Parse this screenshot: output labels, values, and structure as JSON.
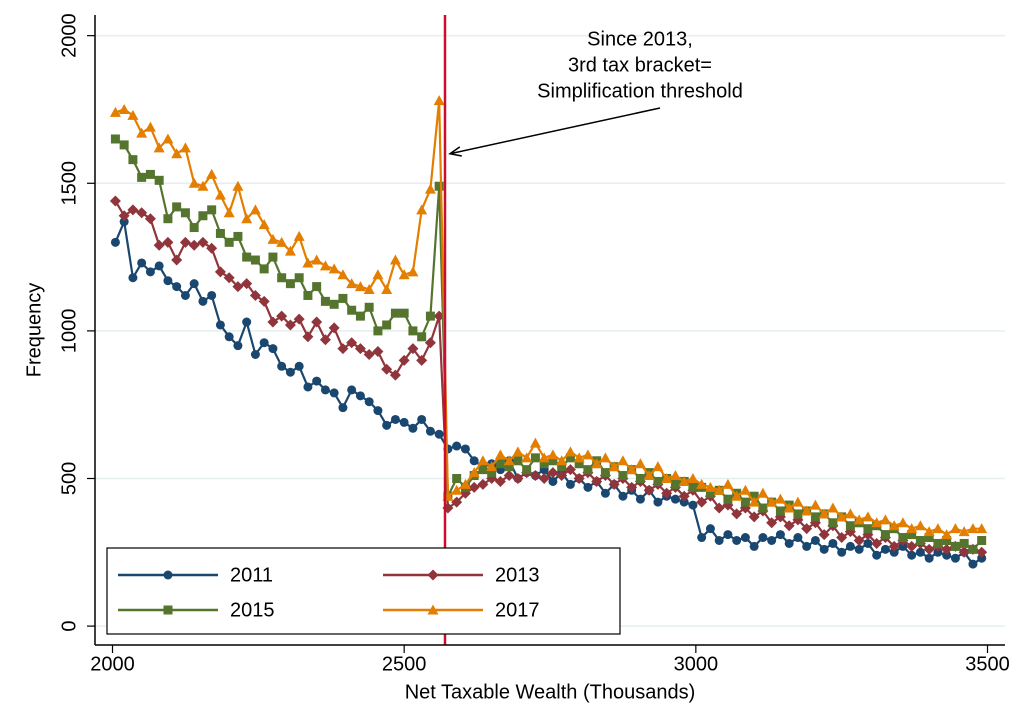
{
  "chart_data": {
    "type": "line",
    "xlabel": "Net Taxable Wealth (Thousands)",
    "ylabel": "Frequency",
    "xlim": [
      1970,
      3530
    ],
    "ylim": [
      -64,
      2070
    ],
    "xticks": [
      2000,
      2500,
      3000,
      3500
    ],
    "yticks": [
      0,
      500,
      1000,
      1500,
      2000
    ],
    "grid": true,
    "legend": "lower left",
    "vline": {
      "x": 2570,
      "color": "#c8102e"
    },
    "annotation": {
      "lines": [
        "Since 2013,",
        "3rd tax bracket=",
        "Simplification threshold"
      ],
      "x": 2570,
      "y": 1600
    },
    "x": [
      2005,
      2020,
      2035,
      2050,
      2065,
      2080,
      2095,
      2110,
      2125,
      2140,
      2155,
      2170,
      2185,
      2200,
      2215,
      2230,
      2245,
      2260,
      2275,
      2290,
      2305,
      2320,
      2335,
      2350,
      2365,
      2380,
      2395,
      2410,
      2425,
      2440,
      2455,
      2470,
      2485,
      2500,
      2515,
      2530,
      2545,
      2560,
      2575,
      2590,
      2605,
      2620,
      2635,
      2650,
      2665,
      2680,
      2695,
      2710,
      2725,
      2740,
      2755,
      2770,
      2785,
      2800,
      2815,
      2830,
      2845,
      2860,
      2875,
      2890,
      2905,
      2920,
      2935,
      2950,
      2965,
      2980,
      2995,
      3010,
      3025,
      3040,
      3055,
      3070,
      3085,
      3100,
      3115,
      3130,
      3145,
      3160,
      3175,
      3190,
      3205,
      3220,
      3235,
      3250,
      3265,
      3280,
      3295,
      3310,
      3325,
      3340,
      3355,
      3370,
      3385,
      3400,
      3415,
      3430,
      3445,
      3460,
      3475,
      3490
    ],
    "series": [
      {
        "name": "2011",
        "color": "#1a476f",
        "marker": "circle",
        "values": [
          1300,
          1370,
          1180,
          1230,
          1200,
          1220,
          1170,
          1150,
          1120,
          1160,
          1100,
          1120,
          1020,
          980,
          950,
          1030,
          920,
          960,
          940,
          880,
          860,
          880,
          810,
          830,
          800,
          790,
          740,
          800,
          780,
          760,
          730,
          680,
          700,
          690,
          670,
          700,
          660,
          650,
          600,
          610,
          600,
          560,
          540,
          550,
          530,
          560,
          500,
          520,
          510,
          530,
          490,
          520,
          480,
          500,
          470,
          490,
          450,
          480,
          440,
          460,
          430,
          460,
          420,
          440,
          430,
          420,
          410,
          300,
          330,
          290,
          310,
          290,
          300,
          270,
          300,
          290,
          310,
          280,
          300,
          270,
          290,
          260,
          280,
          250,
          270,
          260,
          280,
          240,
          260,
          250,
          270,
          240,
          250,
          230,
          250,
          240,
          230,
          250,
          210,
          230
        ]
      },
      {
        "name": "2013",
        "color": "#90353b",
        "marker": "diamond",
        "values": [
          1440,
          1390,
          1410,
          1400,
          1380,
          1290,
          1300,
          1240,
          1300,
          1290,
          1300,
          1280,
          1200,
          1180,
          1150,
          1160,
          1120,
          1100,
          1030,
          1050,
          1020,
          1040,
          980,
          1030,
          970,
          1010,
          940,
          960,
          940,
          920,
          930,
          870,
          850,
          900,
          940,
          900,
          960,
          1050,
          400,
          420,
          450,
          470,
          480,
          500,
          490,
          510,
          500,
          520,
          510,
          500,
          520,
          510,
          530,
          500,
          520,
          490,
          510,
          480,
          500,
          470,
          490,
          460,
          480,
          450,
          470,
          440,
          460,
          420,
          440,
          400,
          410,
          380,
          400,
          370,
          390,
          350,
          370,
          340,
          360,
          330,
          350,
          310,
          340,
          300,
          320,
          290,
          310,
          280,
          300,
          270,
          290,
          270,
          280,
          260,
          270,
          260,
          270,
          250,
          260,
          250
        ]
      },
      {
        "name": "2015",
        "color": "#55752f",
        "marker": "square",
        "values": [
          1650,
          1630,
          1580,
          1520,
          1530,
          1510,
          1380,
          1420,
          1400,
          1350,
          1390,
          1410,
          1330,
          1300,
          1320,
          1250,
          1240,
          1210,
          1250,
          1180,
          1160,
          1180,
          1120,
          1150,
          1100,
          1090,
          1110,
          1070,
          1050,
          1080,
          1000,
          1020,
          1060,
          1060,
          1000,
          980,
          1050,
          1490,
          440,
          500,
          470,
          510,
          530,
          520,
          550,
          540,
          560,
          530,
          570,
          550,
          560,
          540,
          570,
          550,
          530,
          560,
          520,
          540,
          510,
          530,
          500,
          520,
          490,
          500,
          480,
          490,
          470,
          470,
          450,
          460,
          430,
          450,
          420,
          440,
          400,
          420,
          390,
          410,
          380,
          390,
          370,
          380,
          350,
          370,
          340,
          350,
          330,
          340,
          310,
          330,
          300,
          310,
          290,
          300,
          280,
          290,
          270,
          280,
          260,
          290
        ]
      },
      {
        "name": "2017",
        "color": "#e37e00",
        "marker": "triangle",
        "values": [
          1740,
          1750,
          1730,
          1670,
          1690,
          1620,
          1650,
          1600,
          1620,
          1500,
          1490,
          1530,
          1460,
          1400,
          1490,
          1380,
          1410,
          1360,
          1310,
          1300,
          1270,
          1320,
          1230,
          1240,
          1220,
          1210,
          1190,
          1160,
          1150,
          1140,
          1190,
          1140,
          1240,
          1190,
          1200,
          1410,
          1480,
          1780,
          440,
          460,
          480,
          520,
          560,
          540,
          580,
          560,
          590,
          570,
          620,
          570,
          580,
          560,
          590,
          570,
          580,
          550,
          570,
          540,
          560,
          530,
          550,
          510,
          540,
          500,
          510,
          490,
          500,
          480,
          470,
          460,
          480,
          440,
          460,
          420,
          450,
          420,
          430,
          400,
          420,
          390,
          410,
          380,
          400,
          370,
          380,
          360,
          370,
          350,
          360,
          340,
          350,
          330,
          340,
          320,
          330,
          310,
          330,
          320,
          330,
          330
        ]
      }
    ]
  }
}
